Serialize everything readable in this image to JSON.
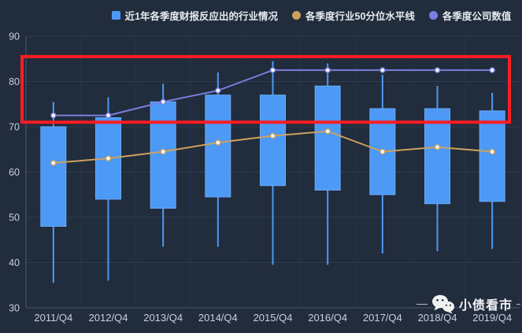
{
  "legend": {
    "items": [
      {
        "label": "近1年各季度财报反应出的行业情况",
        "color": "#4c99f6",
        "shape": "square"
      },
      {
        "label": "各季度行业50分位水平线",
        "color": "#cda15e",
        "shape": "circle"
      },
      {
        "label": "各季度公司数值",
        "color": "#7a7ee0",
        "shape": "circle"
      }
    ]
  },
  "watermark": {
    "icon": "wechat-icon",
    "text": "小债看市"
  },
  "colors": {
    "background": "#212c3c",
    "plot_grid": "#2e3b52",
    "split_line": "#283448",
    "axis_line": "#4a5770",
    "tick_text": "#c9d1de",
    "legend_text": "#e6eaf1",
    "watermark_text": "#f2f2f2",
    "marker_fill": "#fdfdfd",
    "box_border": "#6aaaf8"
  },
  "chart_data": {
    "type": "candlestick",
    "title": "",
    "categories": [
      "2011/Q4",
      "2012/Q4",
      "2013/Q4",
      "2014/Q4",
      "2015/Q4",
      "2016/Q4",
      "2017/Q4",
      "2018/Q4",
      "2019/Q4"
    ],
    "ylim": [
      30,
      90
    ],
    "yticks": [
      30,
      40,
      50,
      60,
      70,
      80,
      90
    ],
    "grid": true,
    "legend_position": "top",
    "series": [
      {
        "name": "近1年各季度财报反应出的行业情况",
        "type": "candlestick",
        "color": "#4c99f6",
        "boxes": [
          {
            "low": 35.5,
            "q1": 48,
            "q3": 70,
            "high": 75.5
          },
          {
            "low": 36,
            "q1": 54,
            "q3": 72,
            "high": 76.5
          },
          {
            "low": 43.5,
            "q1": 52,
            "q3": 75.5,
            "high": 79.5
          },
          {
            "low": 43.5,
            "q1": 54.5,
            "q3": 77,
            "high": 82
          },
          {
            "low": 39.5,
            "q1": 57,
            "q3": 77,
            "high": 84.5
          },
          {
            "low": 39.5,
            "q1": 56,
            "q3": 79,
            "high": 84
          },
          {
            "low": 42,
            "q1": 55,
            "q3": 74,
            "high": 81.5
          },
          {
            "low": 42.5,
            "q1": 53,
            "q3": 74,
            "high": 79
          },
          {
            "low": 43,
            "q1": 53.5,
            "q3": 73.5,
            "high": 77.5
          }
        ]
      },
      {
        "name": "各季度行业50分位水平线",
        "type": "line",
        "color": "#cda15e",
        "values": [
          62,
          63,
          64.5,
          66.5,
          68,
          69,
          64.5,
          65.5,
          64.5
        ]
      },
      {
        "name": "各季度公司数值",
        "type": "line",
        "color": "#7a7ee0",
        "values": [
          72.5,
          72.5,
          75.5,
          78,
          82.5,
          82.5,
          82.5,
          82.5,
          82.5
        ]
      }
    ],
    "annotation": {
      "shape": "rect",
      "color": "#fb1d22",
      "y_range": [
        71,
        85.5
      ],
      "x_range": "all-categories",
      "meaning": "highlights the plateau of the purple company-value line"
    }
  }
}
